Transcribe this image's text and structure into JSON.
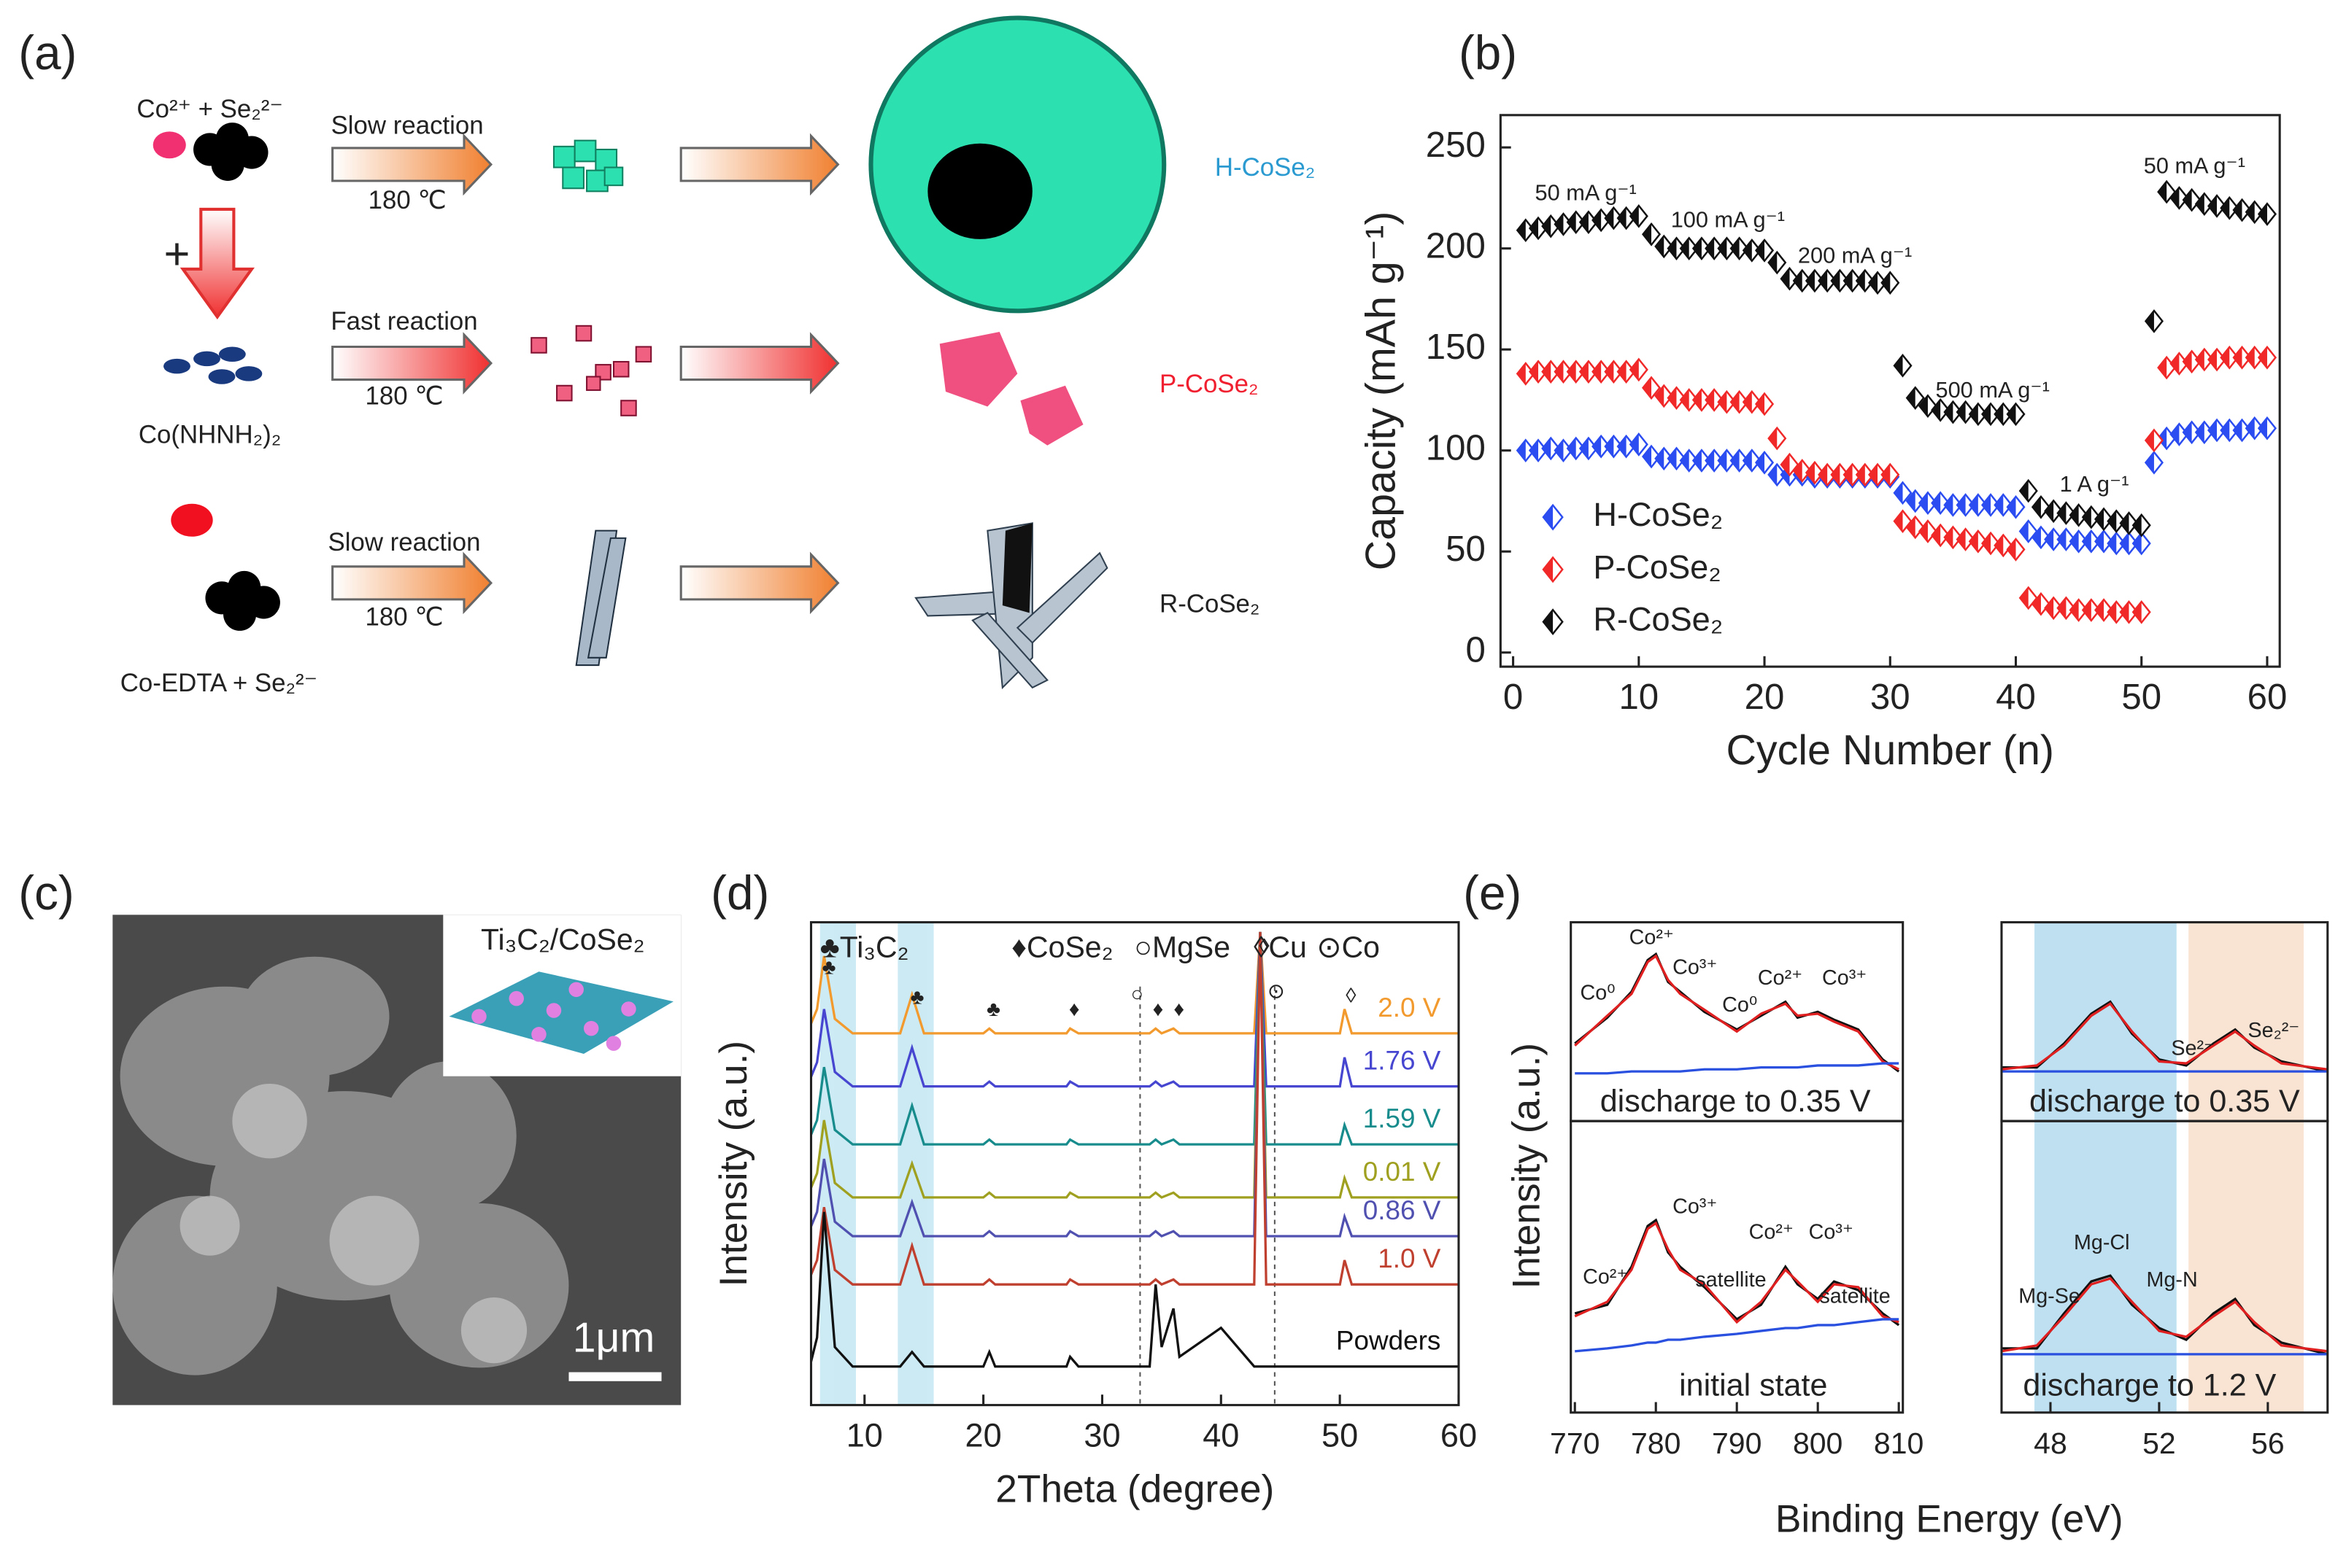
{
  "figure": {
    "labels": [
      "(a)",
      "(b)",
      "(c)",
      "(d)",
      "(e)"
    ]
  },
  "panel_a": {
    "reactant_1": "Co²⁺ + Se₂²⁻",
    "plus": "+",
    "precursor": "Co(NHNH₂)₂",
    "reactant_3": "Co-EDTA + Se₂²⁻",
    "rows": [
      {
        "reaction": "Slow reaction",
        "temperature": "180 ℃",
        "product": "H-CoSe₂"
      },
      {
        "reaction": "Fast reaction",
        "temperature": "180 ℃",
        "product": "P-CoSe₂"
      },
      {
        "reaction": "Slow reaction",
        "temperature": "180 ℃",
        "product": "R-CoSe₂"
      }
    ]
  },
  "panel_c": {
    "inset_label": "Ti₃C₂/CoSe₂",
    "scale_bar": "1μm"
  },
  "panel_e": {
    "ylabel": "Intensity (a.u.)",
    "xlabel": "Binding Energy (eV)"
  },
  "chart_data": [
    {
      "type": "scatter",
      "xlabel": "Cycle Number (n)",
      "ylabel": "Capacity (mAh g⁻¹)",
      "x": [
        1,
        2,
        3,
        4,
        5,
        6,
        7,
        8,
        9,
        10,
        11,
        12,
        13,
        14,
        15,
        16,
        17,
        18,
        19,
        20,
        21,
        22,
        23,
        24,
        25,
        26,
        27,
        28,
        29,
        30,
        31,
        32,
        33,
        34,
        35,
        36,
        37,
        38,
        39,
        40,
        41,
        42,
        43,
        44,
        45,
        46,
        47,
        48,
        49,
        50,
        51,
        52,
        53,
        54,
        55,
        56,
        57,
        58,
        59,
        60
      ],
      "series": [
        {
          "name": "H-CoSe₂",
          "color": "#2a4cf0",
          "values": [
            100,
            100,
            101,
            100,
            101,
            101,
            102,
            102,
            102,
            103,
            97,
            96,
            96,
            95,
            95,
            95,
            95,
            95,
            95,
            94,
            88,
            88,
            88,
            87,
            87,
            87,
            87,
            87,
            87,
            87,
            79,
            75,
            74,
            74,
            73,
            73,
            73,
            73,
            73,
            72,
            60,
            57,
            56,
            56,
            55,
            55,
            55,
            54,
            54,
            54,
            94,
            106,
            108,
            109,
            109,
            110,
            110,
            110,
            111,
            111
          ]
        },
        {
          "name": "P-CoSe₂",
          "color": "#f02828",
          "values": [
            138,
            139,
            139,
            139,
            139,
            139,
            139,
            139,
            139,
            140,
            131,
            127,
            126,
            125,
            125,
            125,
            124,
            124,
            124,
            123,
            106,
            93,
            90,
            89,
            88,
            88,
            88,
            88,
            88,
            88,
            65,
            62,
            60,
            58,
            57,
            56,
            55,
            54,
            53,
            51,
            27,
            24,
            22,
            22,
            21,
            21,
            21,
            20,
            20,
            20,
            105,
            141,
            143,
            144,
            145,
            145,
            146,
            146,
            146,
            146
          ]
        },
        {
          "name": "R-CoSe₂",
          "color": "#111111",
          "values": [
            209,
            210,
            211,
            212,
            213,
            213,
            214,
            215,
            215,
            216,
            207,
            201,
            200,
            200,
            200,
            200,
            200,
            200,
            199,
            199,
            193,
            185,
            184,
            184,
            184,
            184,
            184,
            184,
            183,
            183,
            142,
            126,
            122,
            120,
            119,
            119,
            118,
            118,
            118,
            118,
            80,
            72,
            70,
            69,
            68,
            67,
            66,
            65,
            64,
            63,
            164,
            228,
            225,
            224,
            222,
            221,
            220,
            219,
            218,
            217
          ]
        }
      ],
      "xlim": [
        -1,
        61
      ],
      "ylim": [
        -7,
        266
      ],
      "xticks": [
        0,
        10,
        20,
        30,
        40,
        50,
        60
      ],
      "yticks": [
        0,
        50,
        100,
        150,
        200,
        250
      ],
      "legend": "lower left",
      "annotations": [
        "50 mA g⁻¹",
        "100 mA g⁻¹",
        "200 mA g⁻¹",
        "500 mA g⁻¹",
        "1 A g⁻¹",
        "50 mA g⁻¹"
      ]
    },
    {
      "type": "line",
      "xlabel": "2Theta (degree)",
      "ylabel": "Intensity (a.u.)",
      "x": [
        5.5,
        6,
        6.6,
        7.5,
        9,
        13,
        14,
        15,
        20,
        20.5,
        21,
        27,
        27.3,
        28,
        34,
        34.5,
        35,
        36,
        36.5,
        40,
        42.8,
        43.3,
        43.8,
        50,
        50.4,
        51,
        60
      ],
      "series": [
        {
          "name": "2.0 V",
          "color": "#f29a2e",
          "values": [
            79,
            82,
            93,
            80,
            77,
            77,
            85,
            77,
            77,
            78,
            77,
            77,
            78,
            77,
            77,
            78,
            77,
            78,
            77,
            77,
            77,
            98,
            77,
            77,
            82,
            77,
            77
          ]
        },
        {
          "name": "1.76 V",
          "color": "#4646d0",
          "values": [
            68,
            71,
            82,
            69,
            66,
            66,
            74,
            66,
            66,
            67,
            66,
            66,
            67,
            66,
            66,
            67,
            66,
            67,
            66,
            66,
            66,
            98,
            66,
            66,
            72,
            66,
            66
          ]
        },
        {
          "name": "1.59 V",
          "color": "#188c8c",
          "values": [
            56,
            59,
            70,
            57,
            54,
            54,
            62,
            54,
            54,
            55,
            54,
            54,
            55,
            54,
            54,
            55,
            54,
            55,
            54,
            54,
            54,
            98,
            54,
            54,
            58,
            54,
            54
          ]
        },
        {
          "name": "0.01 V",
          "color": "#a0a020",
          "values": [
            45,
            48,
            59,
            46,
            43,
            43,
            50,
            43,
            43,
            44,
            43,
            43,
            44,
            43,
            43,
            44,
            43,
            44,
            43,
            43,
            43,
            98,
            43,
            43,
            47,
            43,
            43
          ]
        },
        {
          "name": "0.86 V",
          "color": "#5050b0",
          "values": [
            37,
            40,
            51,
            38,
            35,
            35,
            42,
            35,
            35,
            36,
            35,
            35,
            36,
            35,
            35,
            36,
            35,
            36,
            35,
            35,
            35,
            98,
            35,
            35,
            39,
            35,
            35
          ]
        },
        {
          "name": "1.0 V",
          "color": "#c04030",
          "values": [
            27,
            30,
            41,
            28,
            25,
            25,
            33,
            25,
            25,
            26,
            25,
            25,
            26,
            25,
            25,
            26,
            25,
            26,
            25,
            25,
            25,
            98,
            25,
            25,
            30,
            25,
            25
          ]
        },
        {
          "name": "Powders",
          "color": "#111111",
          "values": [
            9,
            14,
            40,
            12,
            8,
            8,
            11,
            8,
            8,
            11,
            8,
            8,
            10,
            8,
            8,
            25,
            12,
            20,
            10,
            16,
            8,
            8,
            8,
            8,
            8,
            8,
            8
          ]
        }
      ],
      "xlim": [
        5.5,
        60
      ],
      "ylim": [
        0,
        100
      ],
      "xticks": [
        10,
        20,
        30,
        40,
        50,
        60
      ],
      "legend_items": [
        "♣Ti₃C₂",
        "♦CoSe₂",
        "○MgSe",
        "◊Cu",
        "⊙Co"
      ],
      "peak_symbols": [
        "♣",
        "♣",
        "♣",
        "♦",
        "○",
        "♦",
        "♦",
        "◊",
        "⊙",
        "◊"
      ]
    },
    {
      "type": "line",
      "x": [
        770,
        774,
        777,
        779,
        780,
        781.5,
        783,
        786,
        790,
        793,
        796,
        797.5,
        800,
        802,
        805,
        808,
        810
      ],
      "series": [
        {
          "color": "#111111",
          "values": [
            39,
            52,
            65,
            81,
            84,
            70,
            65,
            55,
            46,
            53,
            60,
            52,
            55,
            51,
            46,
            31,
            25
          ]
        },
        {
          "color": "#e02020",
          "values": [
            38,
            53,
            64,
            80,
            83,
            71,
            64,
            56,
            45,
            54,
            59,
            53,
            54,
            50,
            45,
            30,
            26
          ]
        },
        {
          "color": "#2a50e0",
          "values": [
            24,
            24,
            25,
            25,
            25,
            25,
            25,
            26,
            26,
            27,
            27,
            27,
            28,
            28,
            28,
            29,
            29
          ]
        }
      ],
      "xlim": [
        769.5,
        810.5
      ],
      "ylim": [
        0,
        100
      ],
      "caption": "discharge to 0.35 V",
      "peak_labels": [
        "Co⁰",
        "Co²⁺",
        "Co³⁺",
        "Co⁰",
        "Co²⁺",
        "Co³⁺"
      ]
    },
    {
      "type": "line",
      "x": [
        770,
        774,
        777,
        779,
        780,
        781.5,
        783,
        786,
        790,
        793,
        796,
        797.5,
        800,
        802,
        805,
        808,
        810
      ],
      "series": [
        {
          "color": "#111111",
          "values": [
            34,
            37,
            50,
            64,
            66,
            55,
            50,
            43,
            32,
            37,
            50,
            44,
            39,
            45,
            42,
            34,
            30
          ]
        },
        {
          "color": "#e02020",
          "values": [
            33,
            38,
            49,
            63,
            65,
            56,
            49,
            44,
            31,
            38,
            49,
            45,
            38,
            44,
            43,
            33,
            31
          ]
        },
        {
          "color": "#2a50e0",
          "values": [
            21,
            22,
            23,
            24,
            24,
            25,
            25,
            26,
            27,
            28,
            29,
            29,
            30,
            30,
            31,
            32,
            32
          ]
        }
      ],
      "xlim": [
        769.5,
        810.5
      ],
      "ylim": [
        0,
        100
      ],
      "xticks": [
        770,
        780,
        790,
        800,
        810
      ],
      "caption": "initial state",
      "peak_labels": [
        "Co²⁺",
        "Co³⁺",
        "satellite",
        "Co²⁺",
        "Co³⁺",
        "satellite"
      ]
    },
    {
      "type": "line",
      "x": [
        46.2,
        47.5,
        48.5,
        49.5,
        50.2,
        51,
        52,
        53,
        54,
        54.8,
        55.5,
        56.5,
        58.2
      ],
      "series": [
        {
          "color": "#111111",
          "values": [
            27,
            27,
            39,
            54,
            60,
            44,
            31,
            28,
            39,
            46,
            37,
            30,
            25
          ]
        },
        {
          "color": "#e02020",
          "values": [
            26,
            28,
            38,
            53,
            59,
            45,
            30,
            29,
            38,
            45,
            38,
            29,
            26
          ]
        },
        {
          "color": "#2a50e0",
          "values": [
            25,
            25,
            25,
            25,
            25,
            25,
            25,
            25,
            25,
            25,
            25,
            25,
            25
          ]
        }
      ],
      "xlim": [
        46.2,
        58.2
      ],
      "ylim": [
        0,
        100
      ],
      "caption": "discharge to 0.35 V",
      "peak_labels": [
        "Se²⁻",
        "Se₂²⁻"
      ]
    },
    {
      "type": "line",
      "x": [
        46.2,
        47.5,
        48.5,
        49.5,
        50.2,
        51,
        52,
        53,
        54,
        54.8,
        55.5,
        56.5,
        58.2
      ],
      "series": [
        {
          "color": "#111111",
          "values": [
            22,
            22,
            34,
            45,
            47,
            37,
            29,
            25,
            34,
            39,
            30,
            24,
            20
          ]
        },
        {
          "color": "#e02020",
          "values": [
            21,
            23,
            33,
            44,
            46,
            38,
            28,
            26,
            33,
            38,
            31,
            23,
            21
          ]
        },
        {
          "color": "#2a50e0",
          "values": [
            20,
            20,
            20,
            20,
            20,
            20,
            20,
            20,
            20,
            20,
            20,
            20,
            20
          ]
        }
      ],
      "xlim": [
        46.2,
        58.2
      ],
      "ylim": [
        0,
        100
      ],
      "xticks": [
        48,
        52,
        56
      ],
      "caption": "discharge to 1.2 V",
      "peak_labels": [
        "Mg-Cl",
        "Mg-Se",
        "Mg-N"
      ]
    }
  ]
}
